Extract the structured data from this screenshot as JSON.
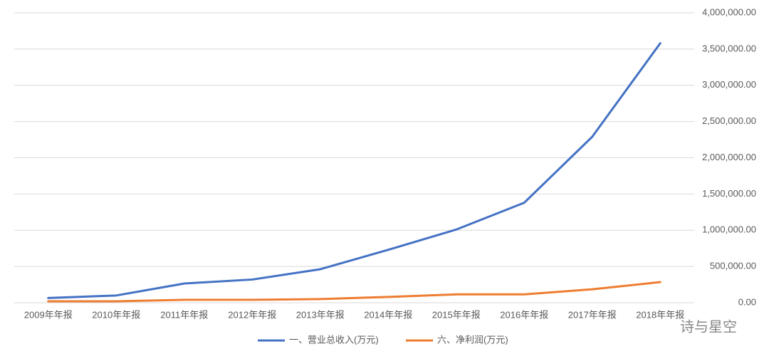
{
  "chart_data": {
    "type": "line",
    "categories": [
      "2009年年报",
      "2010年年报",
      "2011年年报",
      "2012年年报",
      "2013年年报",
      "2014年年报",
      "2015年年报",
      "2016年年报",
      "2017年年报",
      "2018年年报"
    ],
    "series": [
      {
        "name": "一、营业总收入(万元)",
        "color": "#4472c4",
        "values": [
          65000,
          100000,
          265000,
          320000,
          462000,
          730000,
          1010000,
          1380000,
          2290000,
          3580000
        ]
      },
      {
        "name": "六、净利润(万元)",
        "color": "#ed7d31",
        "values": [
          20000,
          20000,
          40000,
          40000,
          50000,
          80000,
          115000,
          115000,
          185000,
          285000
        ]
      }
    ],
    "ylim": [
      0,
      4000000
    ],
    "yticks": [
      {
        "value": 0,
        "label": "0.00"
      },
      {
        "value": 500000,
        "label": "500,000.00"
      },
      {
        "value": 1000000,
        "label": "1,000,000.00"
      },
      {
        "value": 1500000,
        "label": "1,500,000.00"
      },
      {
        "value": 2000000,
        "label": "2,000,000.00"
      },
      {
        "value": 2500000,
        "label": "2,500,000.00"
      },
      {
        "value": 3000000,
        "label": "3,000,000.00"
      },
      {
        "value": 3500000,
        "label": "3,500,000.00"
      },
      {
        "value": 4000000,
        "label": "4,000,000.00"
      }
    ],
    "y_axis_side": "right",
    "grid": true,
    "legend": "bottom"
  },
  "watermark": "诗与星空"
}
